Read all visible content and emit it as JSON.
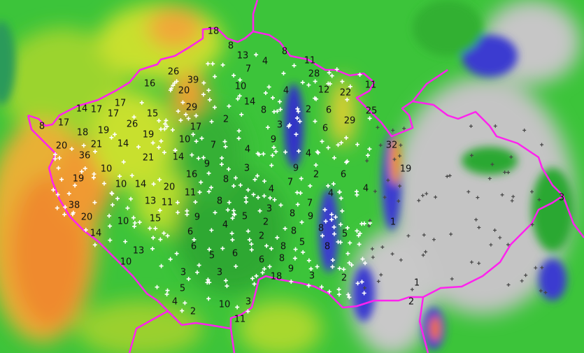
{
  "map": {
    "region": "Czech Republic precipitation radar map",
    "colors": {
      "border": "#ff22ee",
      "station_marker": "#ffffff",
      "label_text": "#111111",
      "low": "#2aa82a",
      "mid": "#c8e62a",
      "high": "#f5a030",
      "very_high": "#e05020",
      "light": "#3f3fd0",
      "terrain": "#c8c8c8"
    },
    "labels": [
      "18",
      "8",
      "13",
      "7",
      "4",
      "8",
      "11",
      "28",
      "26",
      "39",
      "16",
      "20",
      "10",
      "4",
      "12",
      "22",
      "11",
      "14",
      "17",
      "17",
      "17",
      "15",
      "29",
      "14",
      "8",
      "2",
      "6",
      "25",
      "8",
      "17",
      "26",
      "2",
      "3",
      "6",
      "29",
      "18",
      "19",
      "19",
      "17",
      "20",
      "21",
      "14",
      "10",
      "7",
      "4",
      "9",
      "32",
      "36",
      "21",
      "14",
      "9",
      "3",
      "4",
      "10",
      "9",
      "2",
      "19",
      "19",
      "10",
      "14",
      "20",
      "16",
      "8",
      "4",
      "7",
      "6",
      "11",
      "8",
      "4",
      "38",
      "13",
      "11",
      "3",
      "7",
      "20",
      "10",
      "15",
      "9",
      "5",
      "2",
      "8",
      "9",
      "5",
      "14",
      "4",
      "8",
      "6",
      "2",
      "8",
      "6",
      "5",
      "6",
      "6",
      "8",
      "5",
      "8",
      "13",
      "10",
      "8",
      "9",
      "18",
      "3",
      "3",
      "3",
      "5",
      "2",
      "4",
      "2",
      "10",
      "3",
      "11",
      "1",
      "1",
      "2",
      "4",
      "3"
    ]
  }
}
